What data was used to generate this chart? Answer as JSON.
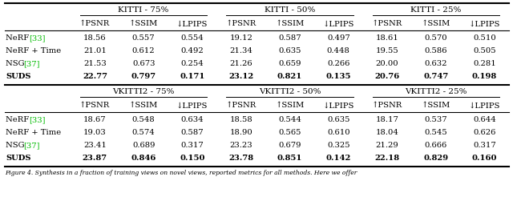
{
  "kitti_groups": [
    "KITTI - 75%",
    "KITTI - 50%",
    "KITTI - 25%"
  ],
  "vkitti_groups": [
    "VKITTI2 - 75%",
    "VKITTI2 - 50%",
    "VKITTI2 - 25%"
  ],
  "col_headers": [
    "↑PSNR",
    "↑SSIM",
    "↓LPIPS"
  ],
  "row_labels": [
    "NeRF [33]",
    "NeRF + Time",
    "NSG [37]",
    "SUDS"
  ],
  "kitti_data": [
    [
      "18.56",
      "0.557",
      "0.554",
      "19.12",
      "0.587",
      "0.497",
      "18.61",
      "0.570",
      "0.510"
    ],
    [
      "21.01",
      "0.612",
      "0.492",
      "21.34",
      "0.635",
      "0.448",
      "19.55",
      "0.586",
      "0.505"
    ],
    [
      "21.53",
      "0.673",
      "0.254",
      "21.26",
      "0.659",
      "0.266",
      "20.00",
      "0.632",
      "0.281"
    ],
    [
      "22.77",
      "0.797",
      "0.171",
      "23.12",
      "0.821",
      "0.135",
      "20.76",
      "0.747",
      "0.198"
    ]
  ],
  "vkitti2_data": [
    [
      "18.67",
      "0.548",
      "0.634",
      "18.58",
      "0.544",
      "0.635",
      "18.17",
      "0.537",
      "0.644"
    ],
    [
      "19.03",
      "0.574",
      "0.587",
      "18.90",
      "0.565",
      "0.610",
      "18.04",
      "0.545",
      "0.626"
    ],
    [
      "23.41",
      "0.689",
      "0.317",
      "23.23",
      "0.679",
      "0.325",
      "21.29",
      "0.666",
      "0.317"
    ],
    [
      "23.87",
      "0.846",
      "0.150",
      "23.78",
      "0.851",
      "0.142",
      "22.18",
      "0.829",
      "0.160"
    ]
  ],
  "bold_row": 3,
  "background_color": "#ffffff",
  "text_color": "#000000",
  "ref_color": "#00bb00",
  "line_color": "#000000",
  "font_size": 7.2,
  "header_font_size": 7.5,
  "caption": "Figure 4. Synthesis in a fraction of training views on novel views, reported metrics for all methods. Here we offer"
}
